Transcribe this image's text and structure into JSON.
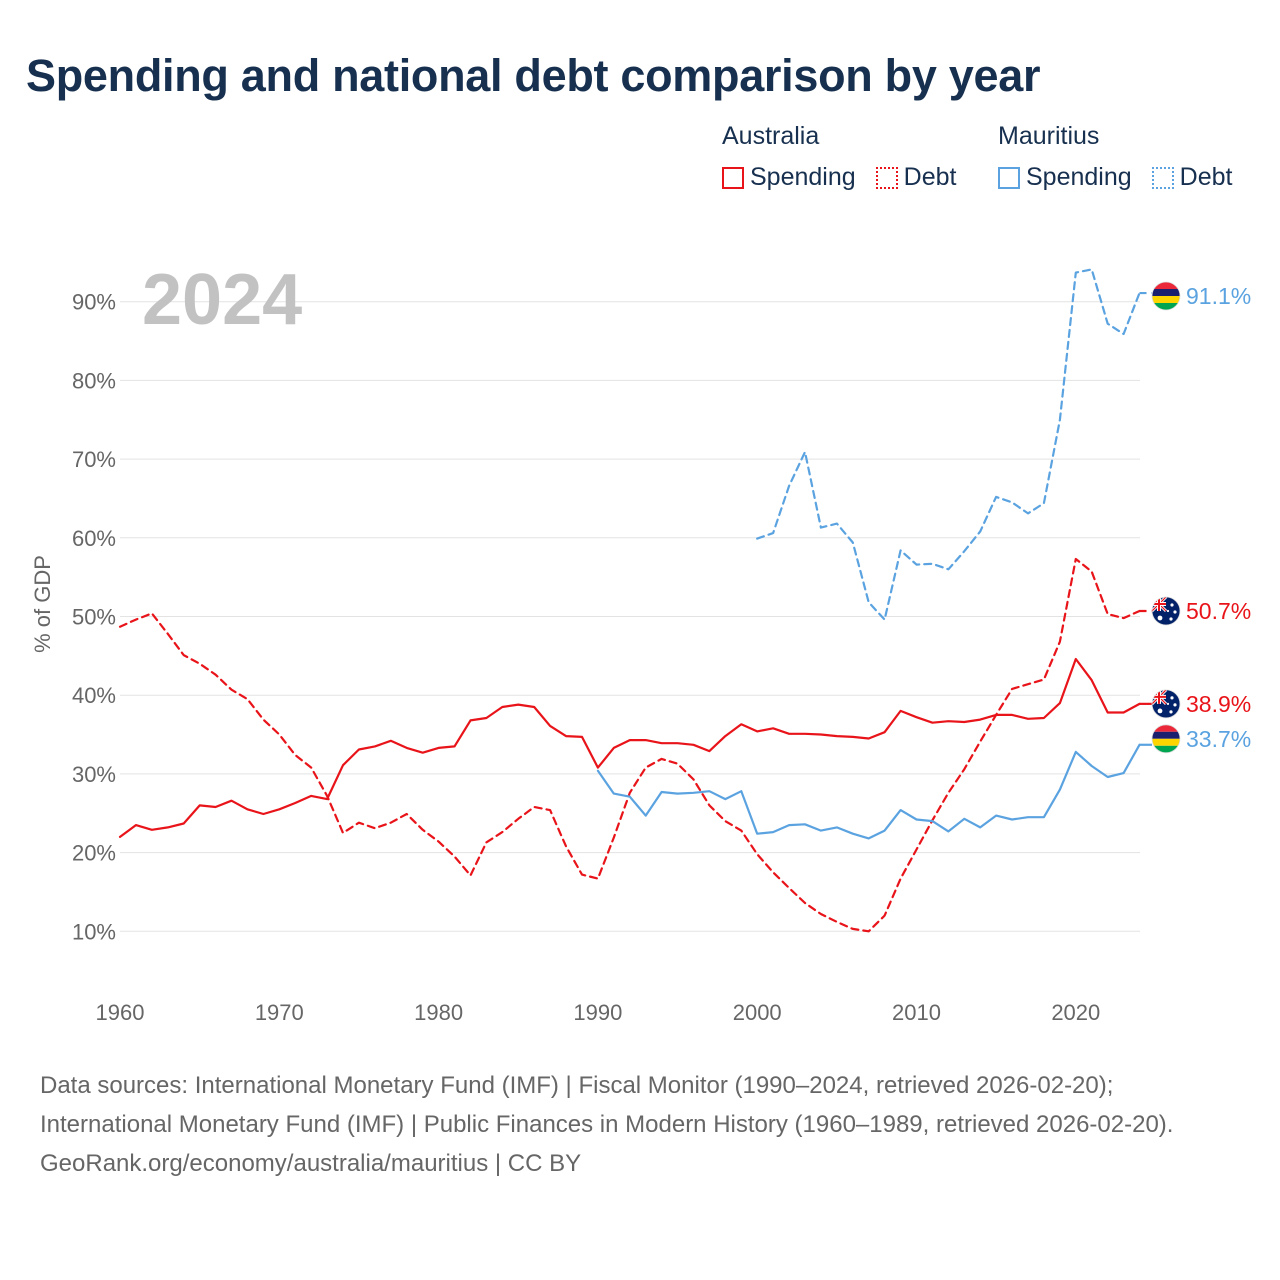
{
  "title": "Spending and national debt comparison by year",
  "legend": {
    "groups": [
      {
        "country": "Australia",
        "color": "#e8141a",
        "items": [
          {
            "label": "Spending",
            "style": "solid"
          },
          {
            "label": "Debt",
            "style": "dotted"
          }
        ]
      },
      {
        "country": "Mauritius",
        "color": "#5ba3e0",
        "items": [
          {
            "label": "Spending",
            "style": "solid"
          },
          {
            "label": "Debt",
            "style": "dotted"
          }
        ]
      }
    ]
  },
  "chart_data": {
    "type": "line",
    "year_label": "2024",
    "ylabel": "% of GDP",
    "xlim": [
      1960,
      2025
    ],
    "ylim": [
      0,
      96
    ],
    "yticks": [
      10,
      20,
      30,
      40,
      50,
      60,
      70,
      80,
      90
    ],
    "ytick_labels": [
      "10%",
      "20%",
      "30%",
      "40%",
      "50%",
      "60%",
      "70%",
      "80%",
      "90%"
    ],
    "xticks": [
      1960,
      1970,
      1980,
      1990,
      2000,
      2010,
      2020
    ],
    "xtick_labels": [
      "1960",
      "1970",
      "1980",
      "1990",
      "2000",
      "2010",
      "2020"
    ],
    "series": [
      {
        "name": "Australia Spending",
        "country": "Australia",
        "color": "#e8141a",
        "dash": false,
        "end_label": "38.9%",
        "flag": "australia-flag",
        "points": [
          [
            1960,
            22.0
          ],
          [
            1961,
            23.5
          ],
          [
            1962,
            22.9
          ],
          [
            1963,
            23.2
          ],
          [
            1964,
            23.7
          ],
          [
            1965,
            26.0
          ],
          [
            1966,
            25.8
          ],
          [
            1967,
            26.6
          ],
          [
            1968,
            25.5
          ],
          [
            1969,
            24.9
          ],
          [
            1970,
            25.5
          ],
          [
            1971,
            26.3
          ],
          [
            1972,
            27.2
          ],
          [
            1973,
            26.8
          ],
          [
            1974,
            31.1
          ],
          [
            1975,
            33.1
          ],
          [
            1976,
            33.5
          ],
          [
            1977,
            34.2
          ],
          [
            1978,
            33.3
          ],
          [
            1979,
            32.7
          ],
          [
            1980,
            33.3
          ],
          [
            1981,
            33.5
          ],
          [
            1982,
            36.8
          ],
          [
            1983,
            37.1
          ],
          [
            1984,
            38.5
          ],
          [
            1985,
            38.8
          ],
          [
            1986,
            38.5
          ],
          [
            1987,
            36.1
          ],
          [
            1988,
            34.8
          ],
          [
            1989,
            34.7
          ],
          [
            1990,
            30.8
          ],
          [
            1991,
            33.3
          ],
          [
            1992,
            34.3
          ],
          [
            1993,
            34.3
          ],
          [
            1994,
            33.9
          ],
          [
            1995,
            33.9
          ],
          [
            1996,
            33.7
          ],
          [
            1997,
            32.9
          ],
          [
            1998,
            34.8
          ],
          [
            1999,
            36.3
          ],
          [
            2000,
            35.4
          ],
          [
            2001,
            35.8
          ],
          [
            2002,
            35.1
          ],
          [
            2003,
            35.1
          ],
          [
            2004,
            35.0
          ],
          [
            2005,
            34.8
          ],
          [
            2006,
            34.7
          ],
          [
            2007,
            34.5
          ],
          [
            2008,
            35.3
          ],
          [
            2009,
            38.0
          ],
          [
            2010,
            37.2
          ],
          [
            2011,
            36.5
          ],
          [
            2012,
            36.7
          ],
          [
            2013,
            36.6
          ],
          [
            2014,
            36.9
          ],
          [
            2015,
            37.5
          ],
          [
            2016,
            37.5
          ],
          [
            2017,
            37.0
          ],
          [
            2018,
            37.1
          ],
          [
            2019,
            39.0
          ],
          [
            2020,
            44.6
          ],
          [
            2021,
            41.9
          ],
          [
            2022,
            37.8
          ],
          [
            2023,
            37.8
          ],
          [
            2024,
            38.9
          ]
        ]
      },
      {
        "name": "Australia Debt",
        "country": "Australia",
        "color": "#e8141a",
        "dash": true,
        "end_label": "50.7%",
        "flag": "australia-flag",
        "points": [
          [
            1960,
            48.7
          ],
          [
            1961,
            49.6
          ],
          [
            1962,
            50.4
          ],
          [
            1963,
            47.8
          ],
          [
            1964,
            45.1
          ],
          [
            1965,
            44.0
          ],
          [
            1966,
            42.6
          ],
          [
            1967,
            40.7
          ],
          [
            1968,
            39.5
          ],
          [
            1969,
            36.9
          ],
          [
            1970,
            35.0
          ],
          [
            1971,
            32.4
          ],
          [
            1972,
            30.8
          ],
          [
            1973,
            27.2
          ],
          [
            1974,
            22.5
          ],
          [
            1975,
            23.8
          ],
          [
            1976,
            23.1
          ],
          [
            1977,
            23.8
          ],
          [
            1978,
            24.9
          ],
          [
            1979,
            22.9
          ],
          [
            1980,
            21.4
          ],
          [
            1981,
            19.5
          ],
          [
            1982,
            17.1
          ],
          [
            1983,
            21.3
          ],
          [
            1984,
            22.6
          ],
          [
            1985,
            24.3
          ],
          [
            1986,
            25.8
          ],
          [
            1987,
            25.4
          ],
          [
            1988,
            20.8
          ],
          [
            1989,
            17.2
          ],
          [
            1990,
            16.7
          ],
          [
            1991,
            21.9
          ],
          [
            1992,
            27.6
          ],
          [
            1993,
            30.8
          ],
          [
            1994,
            31.9
          ],
          [
            1995,
            31.3
          ],
          [
            1996,
            29.3
          ],
          [
            1997,
            26.0
          ],
          [
            1998,
            24.0
          ],
          [
            1999,
            22.8
          ],
          [
            2000,
            19.8
          ],
          [
            2001,
            17.5
          ],
          [
            2002,
            15.5
          ],
          [
            2003,
            13.6
          ],
          [
            2004,
            12.2
          ],
          [
            2005,
            11.2
          ],
          [
            2006,
            10.3
          ],
          [
            2007,
            10.0
          ],
          [
            2008,
            12.0
          ],
          [
            2009,
            16.7
          ],
          [
            2010,
            20.4
          ],
          [
            2011,
            24.1
          ],
          [
            2012,
            27.6
          ],
          [
            2013,
            30.6
          ],
          [
            2014,
            34.1
          ],
          [
            2015,
            37.5
          ],
          [
            2016,
            40.8
          ],
          [
            2017,
            41.4
          ],
          [
            2018,
            42.0
          ],
          [
            2019,
            46.8
          ],
          [
            2020,
            57.3
          ],
          [
            2021,
            55.7
          ],
          [
            2022,
            50.3
          ],
          [
            2023,
            49.8
          ],
          [
            2024,
            50.7
          ]
        ]
      },
      {
        "name": "Mauritius Spending",
        "country": "Mauritius",
        "color": "#5ba3e0",
        "dash": false,
        "end_label": "33.7%",
        "flag": "mauritius-flag",
        "points": [
          [
            1990,
            30.4
          ],
          [
            1991,
            27.5
          ],
          [
            1992,
            27.1
          ],
          [
            1993,
            24.7
          ],
          [
            1994,
            27.7
          ],
          [
            1995,
            27.5
          ],
          [
            1996,
            27.6
          ],
          [
            1997,
            27.8
          ],
          [
            1998,
            26.8
          ],
          [
            1999,
            27.8
          ],
          [
            2000,
            22.4
          ],
          [
            2001,
            22.6
          ],
          [
            2002,
            23.5
          ],
          [
            2003,
            23.6
          ],
          [
            2004,
            22.8
          ],
          [
            2005,
            23.2
          ],
          [
            2006,
            22.4
          ],
          [
            2007,
            21.8
          ],
          [
            2008,
            22.8
          ],
          [
            2009,
            25.4
          ],
          [
            2010,
            24.2
          ],
          [
            2011,
            24.0
          ],
          [
            2012,
            22.7
          ],
          [
            2013,
            24.3
          ],
          [
            2014,
            23.2
          ],
          [
            2015,
            24.7
          ],
          [
            2016,
            24.2
          ],
          [
            2017,
            24.5
          ],
          [
            2018,
            24.5
          ],
          [
            2019,
            28.0
          ],
          [
            2020,
            32.8
          ],
          [
            2021,
            31.0
          ],
          [
            2022,
            29.6
          ],
          [
            2023,
            30.1
          ],
          [
            2024,
            33.7
          ]
        ]
      },
      {
        "name": "Mauritius Debt",
        "country": "Mauritius",
        "color": "#5ba3e0",
        "dash": true,
        "end_label": "91.1%",
        "flag": "mauritius-flag",
        "points": [
          [
            2000,
            59.9
          ],
          [
            2001,
            60.6
          ],
          [
            2002,
            66.6
          ],
          [
            2003,
            70.9
          ],
          [
            2004,
            61.3
          ],
          [
            2005,
            61.8
          ],
          [
            2006,
            59.4
          ],
          [
            2007,
            51.8
          ],
          [
            2008,
            49.6
          ],
          [
            2009,
            58.4
          ],
          [
            2010,
            56.6
          ],
          [
            2011,
            56.7
          ],
          [
            2012,
            56.0
          ],
          [
            2013,
            58.3
          ],
          [
            2014,
            60.8
          ],
          [
            2015,
            65.2
          ],
          [
            2016,
            64.5
          ],
          [
            2017,
            63.1
          ],
          [
            2018,
            64.4
          ],
          [
            2019,
            75.0
          ],
          [
            2020,
            93.7
          ],
          [
            2021,
            94.1
          ],
          [
            2022,
            87.2
          ],
          [
            2023,
            85.9
          ],
          [
            2024,
            91.1
          ]
        ]
      }
    ]
  },
  "footer": {
    "sources": "Data sources: International Monetary Fund (IMF) | Fiscal Monitor (1990–2024, retrieved 2026-02-20); International Monetary Fund (IMF) | Public Finances in Modern History (1960–1989, retrieved 2026-02-20).",
    "credit": "GeoRank.org/economy/australia/mauritius | CC BY"
  }
}
